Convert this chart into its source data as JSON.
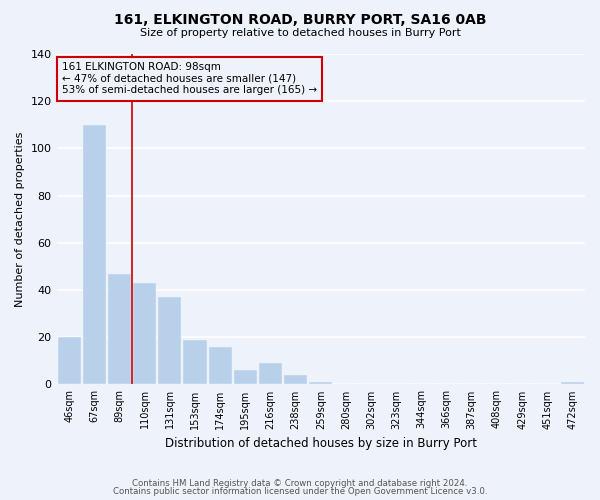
{
  "title": "161, ELKINGTON ROAD, BURRY PORT, SA16 0AB",
  "subtitle": "Size of property relative to detached houses in Burry Port",
  "xlabel": "Distribution of detached houses by size in Burry Port",
  "ylabel": "Number of detached properties",
  "bar_labels": [
    "46sqm",
    "67sqm",
    "89sqm",
    "110sqm",
    "131sqm",
    "153sqm",
    "174sqm",
    "195sqm",
    "216sqm",
    "238sqm",
    "259sqm",
    "280sqm",
    "302sqm",
    "323sqm",
    "344sqm",
    "366sqm",
    "387sqm",
    "408sqm",
    "429sqm",
    "451sqm",
    "472sqm"
  ],
  "bar_values": [
    20,
    110,
    47,
    43,
    37,
    19,
    16,
    6,
    9,
    4,
    1,
    0,
    0,
    0,
    0,
    0,
    0,
    0,
    0,
    0,
    1
  ],
  "bar_color": "#b8d0ea",
  "ylim": [
    0,
    140
  ],
  "yticks": [
    0,
    20,
    40,
    60,
    80,
    100,
    120,
    140
  ],
  "vline_color": "#cc0000",
  "annotation_title": "161 ELKINGTON ROAD: 98sqm",
  "annotation_line1": "← 47% of detached houses are smaller (147)",
  "annotation_line2": "53% of semi-detached houses are larger (165) →",
  "annotation_box_edgecolor": "#cc0000",
  "bg_color": "#eef2fb",
  "grid_color": "#ffffff",
  "footer1": "Contains HM Land Registry data © Crown copyright and database right 2024.",
  "footer2": "Contains public sector information licensed under the Open Government Licence v3.0."
}
